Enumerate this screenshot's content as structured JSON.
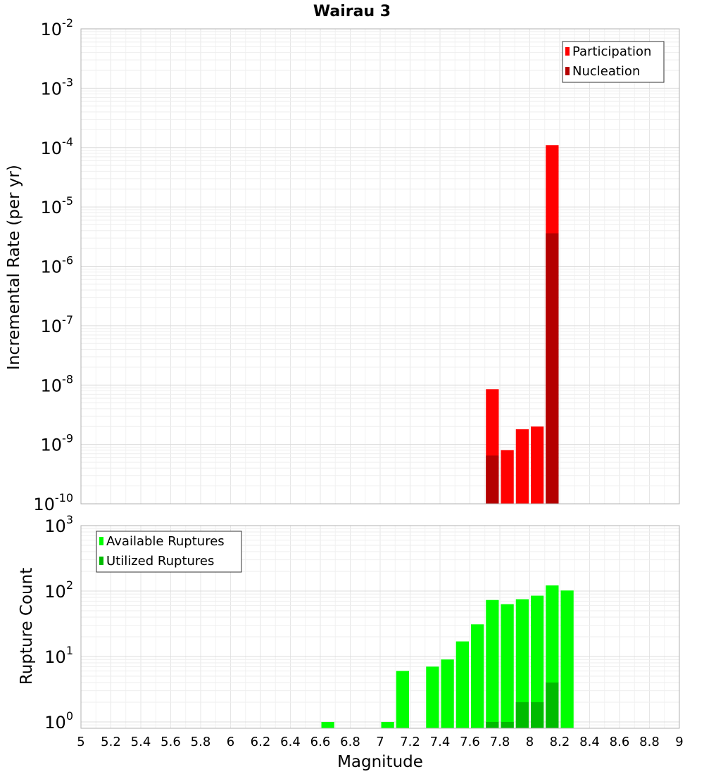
{
  "chart_data": [
    {
      "type": "bar",
      "panel": "top",
      "title": "Wairau 3",
      "xlabel": "",
      "ylabel": "Incremental Rate (per yr)",
      "yscale": "log",
      "ylim": [
        1e-10,
        0.01
      ],
      "ytick_exponents": [
        "-10",
        "-9",
        "-8",
        "-7",
        "-6",
        "-5",
        "-4",
        "-3",
        "-2"
      ],
      "ytick_base": "10",
      "xlim": [
        5,
        9
      ],
      "bin_width": 0.1,
      "grid": true,
      "legend_position": "top-right",
      "series": [
        {
          "name": "Participation",
          "color": "#ff0000",
          "x": [
            7.75,
            7.85,
            7.95,
            8.05,
            8.15
          ],
          "values": [
            8.5e-09,
            8e-10,
            1.8e-09,
            2e-09,
            0.00011
          ]
        },
        {
          "name": "Nucleation",
          "color": "#b40000",
          "x": [
            7.75,
            8.15
          ],
          "values": [
            6.5e-10,
            3.6e-06
          ]
        }
      ]
    },
    {
      "type": "bar",
      "panel": "bottom",
      "xlabel": "Magnitude",
      "ylabel": "Rupture Count",
      "yscale": "log",
      "ylim": [
        0.8,
        1000
      ],
      "ytick_exponents": [
        "0",
        "1",
        "2",
        "3"
      ],
      "ytick_base": "10",
      "xlim": [
        5,
        9
      ],
      "xticks": [
        "5",
        "5.2",
        "5.4",
        "5.6",
        "5.8",
        "6",
        "6.2",
        "6.4",
        "6.6",
        "6.8",
        "7",
        "7.2",
        "7.4",
        "7.6",
        "7.8",
        "8",
        "8.2",
        "8.4",
        "8.6",
        "8.8",
        "9"
      ],
      "bin_width": 0.1,
      "grid": true,
      "legend_position": "top-left",
      "series": [
        {
          "name": "Available Ruptures",
          "color": "#00ff00",
          "x": [
            6.65,
            7.05,
            7.15,
            7.35,
            7.45,
            7.55,
            7.65,
            7.75,
            7.85,
            7.95,
            8.05,
            8.15,
            8.25
          ],
          "values": [
            1,
            1,
            6,
            7,
            9,
            17,
            31,
            73,
            63,
            75,
            85,
            122,
            102
          ]
        },
        {
          "name": "Utilized Ruptures",
          "color": "#00bb00",
          "x": [
            7.75,
            7.85,
            7.95,
            8.05,
            8.15
          ],
          "values": [
            1,
            1,
            2,
            2,
            4
          ]
        }
      ]
    }
  ]
}
